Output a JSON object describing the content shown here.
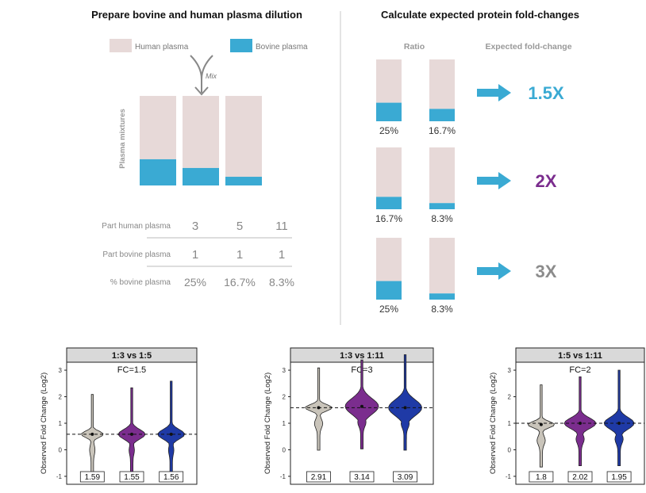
{
  "left_panel": {
    "title": "Prepare bovine and human plasma dilution",
    "legend": {
      "human": "Human plasma",
      "bovine": "Bovine plasma"
    },
    "mix_label": "Mix",
    "y_axis_label": "Plasma mixtures",
    "mixtures_bovine_fraction": [
      0.25,
      0.167,
      0.083
    ],
    "table": {
      "rows": [
        {
          "label": "Part human plasma",
          "values": [
            "3",
            "5",
            "11"
          ]
        },
        {
          "label": "Part bovine plasma",
          "values": [
            "1",
            "1",
            "1"
          ]
        },
        {
          "label": "% bovine plasma",
          "values": [
            "25%",
            "16.7%",
            "8.3%"
          ]
        }
      ]
    }
  },
  "right_panel": {
    "title": "Calculate expected protein fold-changes",
    "ratio_header": "Ratio",
    "fc_header": "Expected fold-change",
    "rows": [
      {
        "a_label": "25%",
        "a_fraction": 0.25,
        "b_label": "16.7%",
        "b_fraction": 0.167,
        "fold": "1.5X",
        "color": "#3aaad3"
      },
      {
        "a_label": "16.7%",
        "a_fraction": 0.167,
        "b_label": "8.3%",
        "b_fraction": 0.083,
        "fold": "2X",
        "color": "#7b2d8e"
      },
      {
        "a_label": "25%",
        "a_fraction": 0.25,
        "b_label": "8.3%",
        "b_fraction": 0.083,
        "fold": "3X",
        "color": "#8c8c8c"
      }
    ]
  },
  "colors": {
    "human": "#e7d9d8",
    "bovine": "#3aaad3",
    "arrow": "#3aaad3",
    "strip": "#d9d9d9",
    "violin_gray": "#c9c4ba",
    "violin_purple": "#7b2d8e",
    "violin_blue": "#1f3aa6"
  },
  "chart_data": [
    {
      "type": "violin",
      "title": "1:3 vs 1:5",
      "annotation": "FC=1.5",
      "ylabel": "Observed Fold Change (Log2)",
      "ylim": [
        -1.3,
        3.3
      ],
      "yticks": [
        -1,
        0,
        1,
        2,
        3
      ],
      "reference_line": 0.585,
      "series": [
        {
          "name": "gray",
          "median": 1.59,
          "label": "1.59"
        },
        {
          "name": "purple",
          "median": 1.55,
          "label": "1.55"
        },
        {
          "name": "blue",
          "median": 1.56,
          "label": "1.56"
        }
      ]
    },
    {
      "type": "violin",
      "title": "1:3 vs 1:11",
      "annotation": "FC=3",
      "ylabel": "Observed Fold Change (Log2)",
      "ylim": [
        -1.3,
        3.3
      ],
      "yticks": [
        -1,
        0,
        1,
        2,
        3
      ],
      "reference_line": 1.585,
      "series": [
        {
          "name": "gray",
          "median": 2.91,
          "label": "2.91"
        },
        {
          "name": "purple",
          "median": 3.14,
          "label": "3.14"
        },
        {
          "name": "blue",
          "median": 3.09,
          "label": "3.09"
        }
      ]
    },
    {
      "type": "violin",
      "title": "1:5 vs 1:11",
      "annotation": "FC=2",
      "ylabel": "Observed Fold Change (Log2)",
      "ylim": [
        -1.3,
        3.3
      ],
      "yticks": [
        -1,
        0,
        1,
        2,
        3
      ],
      "reference_line": 1.0,
      "series": [
        {
          "name": "gray",
          "median": 1.8,
          "label": "1.8"
        },
        {
          "name": "purple",
          "median": 2.02,
          "label": "2.02"
        },
        {
          "name": "blue",
          "median": 1.95,
          "label": "1.95"
        }
      ]
    }
  ]
}
